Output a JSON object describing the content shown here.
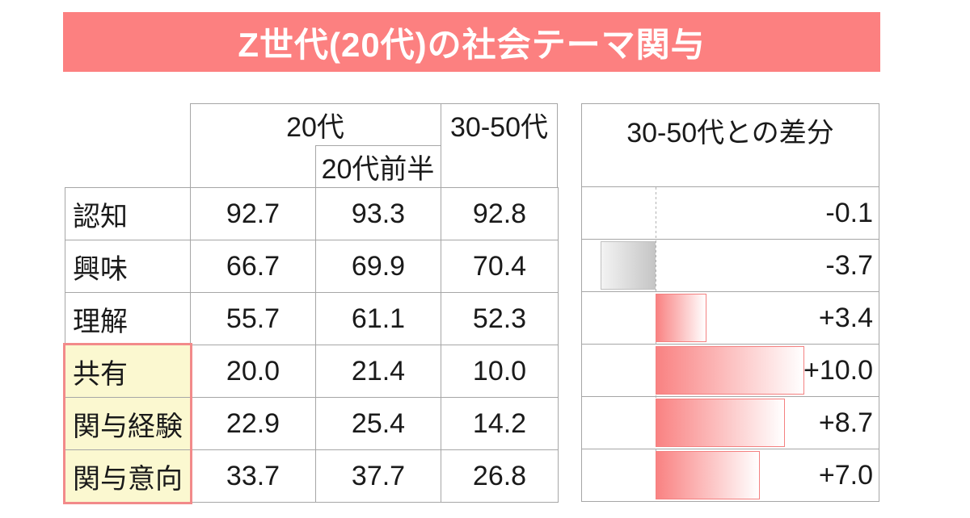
{
  "title": "Z世代(20代)の社会テーマ関与",
  "table": {
    "header": {
      "group_20s": "20代",
      "sub_20s_first_half": "20代前半",
      "group_30_50s": "30-50代"
    },
    "rows": [
      {
        "label": "認知",
        "v_20s": "92.7",
        "v_20s_first_half": "93.3",
        "v_30_50s": "92.8",
        "diff": "-0.1",
        "highlighted": false
      },
      {
        "label": "興味",
        "v_20s": "66.7",
        "v_20s_first_half": "69.9",
        "v_30_50s": "70.4",
        "diff": "-3.7",
        "highlighted": false
      },
      {
        "label": "理解",
        "v_20s": "55.7",
        "v_20s_first_half": "61.1",
        "v_30_50s": "52.3",
        "diff": "+3.4",
        "highlighted": false
      },
      {
        "label": "共有",
        "v_20s": "20.0",
        "v_20s_first_half": "21.4",
        "v_30_50s": "10.0",
        "diff": "+10.0",
        "highlighted": true
      },
      {
        "label": "関与経験",
        "v_20s": "22.9",
        "v_20s_first_half": "25.4",
        "v_30_50s": "14.2",
        "diff": "+8.7",
        "highlighted": true
      },
      {
        "label": "関与意向",
        "v_20s": "33.7",
        "v_20s_first_half": "37.7",
        "v_30_50s": "26.8",
        "diff": "+7.0",
        "highlighted": true
      }
    ]
  },
  "diff_panel": {
    "header": "30-50代との差分",
    "values": [
      -0.1,
      -3.7,
      3.4,
      10.0,
      8.7,
      7.0
    ]
  },
  "colors": {
    "title_bg": "#fc8080",
    "title_text": "#ffffff",
    "grid_line": "#a6a6a6",
    "highlight_bg": "#fbf8d0",
    "highlight_border": "#f28a8a",
    "bar_positive": "#f98282",
    "bar_positive_border": "#f48181",
    "bar_negative": "#c5c5c5",
    "bar_negative_border": "#c0c0c0",
    "zero_axis_dash": "#b3b3b3"
  },
  "chart_data": {
    "type": "bar",
    "orientation": "horizontal",
    "title": "Z世代(20代)の社会テーマ関与",
    "categories": [
      "認知",
      "興味",
      "理解",
      "共有",
      "関与経験",
      "関与意向"
    ],
    "series": [
      {
        "name": "20代",
        "values": [
          92.7,
          66.7,
          55.7,
          20.0,
          22.9,
          33.7
        ]
      },
      {
        "name": "20代前半",
        "values": [
          93.3,
          69.9,
          61.1,
          21.4,
          25.4,
          37.7
        ]
      },
      {
        "name": "30-50代",
        "values": [
          92.8,
          70.4,
          52.3,
          10.0,
          14.2,
          26.8
        ]
      },
      {
        "name": "30-50代との差分",
        "values": [
          -0.1,
          -3.7,
          3.4,
          10.0,
          8.7,
          7.0
        ]
      }
    ],
    "diff_bar_chart": {
      "header": "30-50代との差分",
      "values": [
        -0.1,
        -3.7,
        3.4,
        10.0,
        8.7,
        7.0
      ],
      "zero_line": "dashed",
      "positive_style": "pink-gradient",
      "negative_style": "gray-gradient"
    },
    "highlighted_categories": [
      "共有",
      "関与経験",
      "関与意向"
    ],
    "legend_position": "none",
    "grid": true
  }
}
